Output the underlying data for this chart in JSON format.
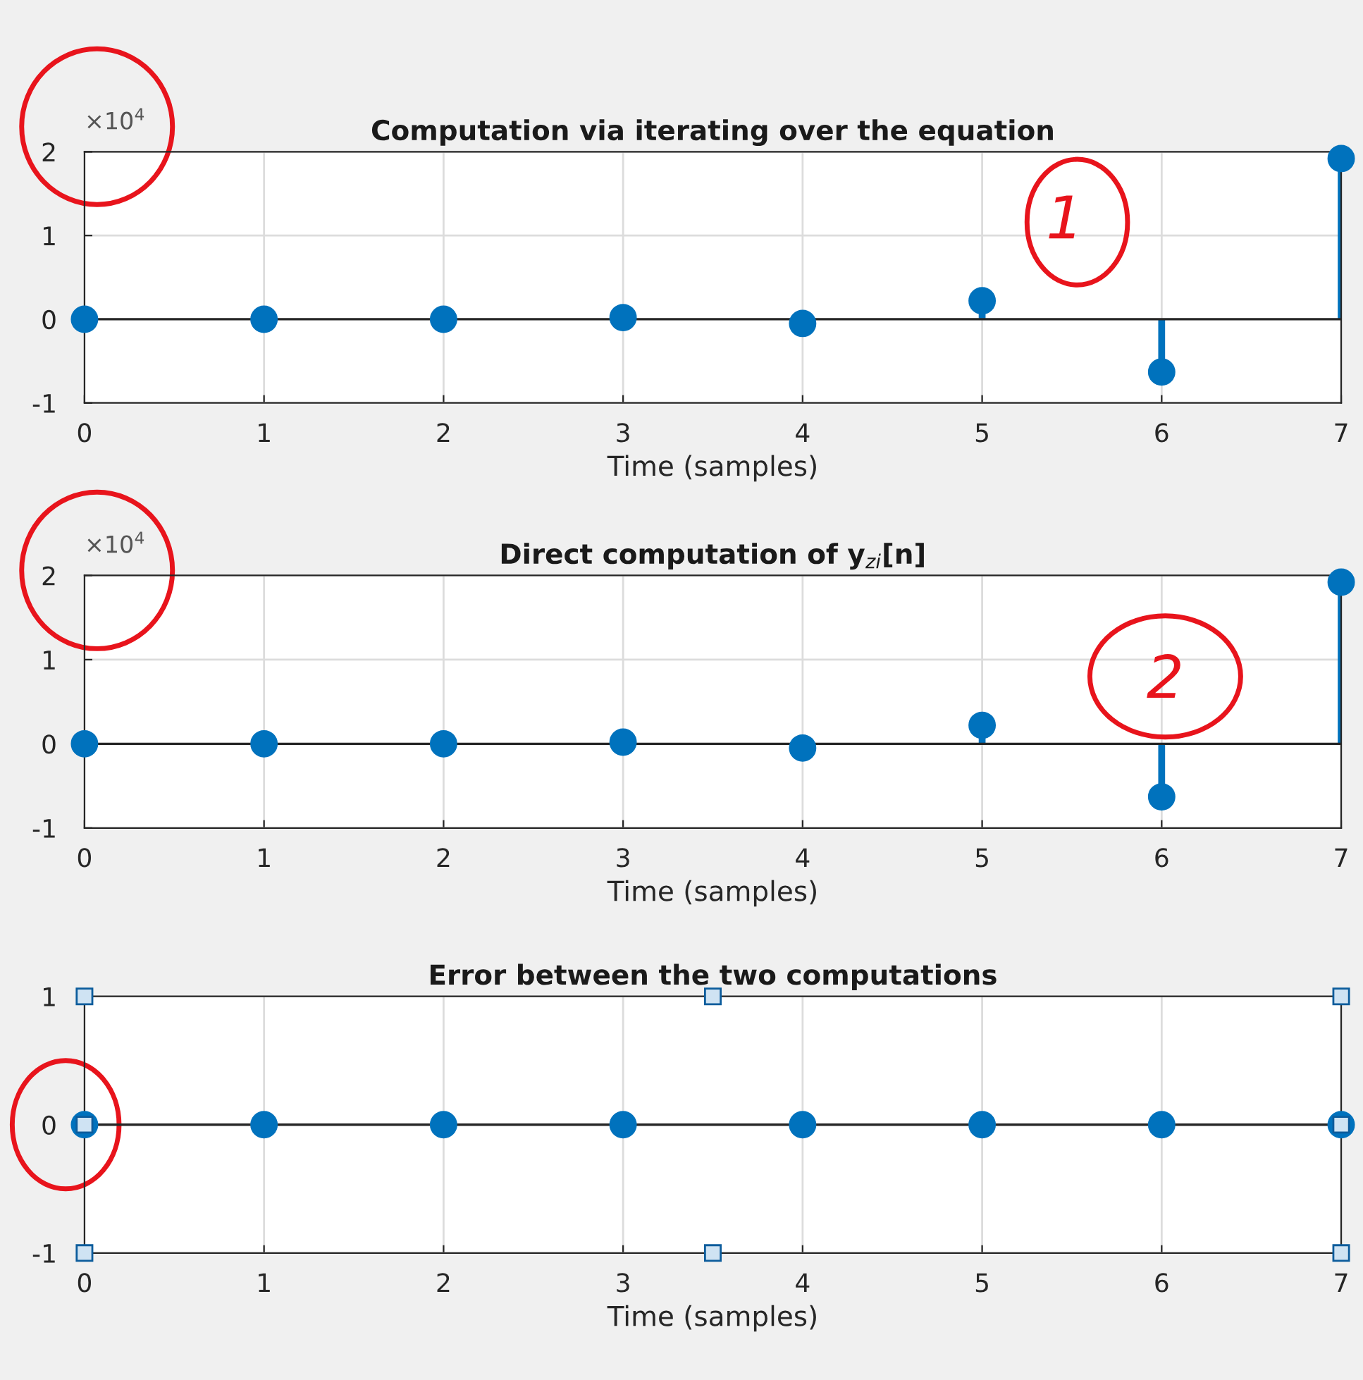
{
  "chart_data": [
    {
      "type": "lollipop",
      "title": "Computation via iterating over the equation",
      "xlabel": "Time (samples)",
      "x": [
        0,
        1,
        2,
        3,
        4,
        5,
        6,
        7
      ],
      "values": [
        0,
        0,
        0,
        0.02,
        -0.05,
        0.22,
        -0.63,
        1.92
      ],
      "color": "#0072bd",
      "xlim": [
        0,
        7
      ],
      "xticks": [
        0,
        1,
        2,
        3,
        4,
        5,
        6,
        7
      ],
      "ylim": [
        -1,
        2
      ],
      "yticks": [
        -1,
        0,
        1,
        2
      ],
      "grid": true,
      "marker": "circle",
      "annotations": [
        "×10$^{4}$",
        "1"
      ]
    },
    {
      "type": "lollipop",
      "title": "Direct computation of y$_{zi}$[n]",
      "xlabel": "Time (samples)",
      "x": [
        0,
        1,
        2,
        3,
        4,
        5,
        6,
        7
      ],
      "values": [
        0,
        0,
        0,
        0.02,
        -0.05,
        0.22,
        -0.63,
        1.92
      ],
      "color": "#0072bd",
      "xlim": [
        0,
        7
      ],
      "xticks": [
        0,
        1,
        2,
        3,
        4,
        5,
        6,
        7
      ],
      "ylim": [
        -1,
        2
      ],
      "yticks": [
        -1,
        0,
        1,
        2
      ],
      "grid": true,
      "marker": "circle",
      "annotations": [
        "×10$^{4}$",
        "2"
      ]
    },
    {
      "type": "lollipop",
      "title": "Error between the two computations",
      "xlabel": "Time (samples)",
      "x": [
        0,
        1,
        2,
        3,
        4,
        5,
        6,
        7
      ],
      "values": [
        0,
        0,
        0,
        0,
        0,
        0,
        0,
        0
      ],
      "color": "#0072bd",
      "xlim": [
        0,
        7
      ],
      "xticks": [
        0,
        1,
        2,
        3,
        4,
        5,
        6,
        7
      ],
      "ylim": [
        -1,
        1
      ],
      "yticks": [
        -1,
        0,
        1
      ],
      "grid": true,
      "marker": "circle"
    }
  ]
}
